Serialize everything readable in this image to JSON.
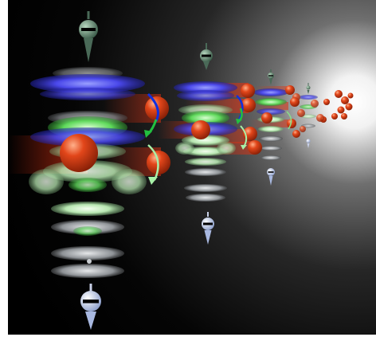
{
  "colors": {
    "background": "#000000",
    "glow": "#ffffff",
    "sphere_red": "#d23a12",
    "plate_blue": "#4444ee",
    "plate_green": "#55dd55",
    "plate_gray": "#b8bcc0",
    "spin_top": "#4a6a58",
    "spin_bottom": "#c8d0e8",
    "arrow_blue": "#1030e0",
    "arrow_green": "#22c040",
    "arrow_light": "#a8f0a8"
  },
  "elements": {
    "columns": 5,
    "spin_probe_top_icon": "pendulum-down-arrow",
    "spin_probe_bottom_icon": "pendulum-down-arrow",
    "curved_arrow_icons": [
      "curved-arrow-blue-green",
      "curved-arrow-light-green"
    ]
  }
}
